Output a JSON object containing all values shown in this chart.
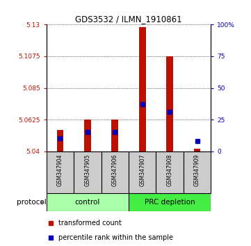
{
  "title": "GDS3532 / ILMN_1910861",
  "samples": [
    "GSM347904",
    "GSM347905",
    "GSM347906",
    "GSM347907",
    "GSM347908",
    "GSM347909"
  ],
  "red_values": [
    5.055,
    5.0625,
    5.0625,
    5.128,
    5.1075,
    5.042
  ],
  "blue_rank_pct": [
    10,
    15,
    15,
    37,
    31,
    8
  ],
  "ylim_left": [
    5.04,
    5.13
  ],
  "ylim_right": [
    0,
    100
  ],
  "yticks_left": [
    5.04,
    5.0625,
    5.085,
    5.1075,
    5.13
  ],
  "yticks_right": [
    0,
    25,
    50,
    75,
    100
  ],
  "yticklabels_left": [
    "5.04",
    "5.0625",
    "5.085",
    "5.1075",
    "5.13"
  ],
  "yticklabels_right": [
    "0",
    "25",
    "50",
    "75",
    "100%"
  ],
  "bar_bottom": 5.04,
  "bar_width": 0.25,
  "red_color": "#bb1100",
  "blue_color": "#0000bb",
  "control_label": "control",
  "prc_label": "PRC depletion",
  "control_bg": "#aaffaa",
  "prc_bg": "#44ee44",
  "protocol_label": "protocol",
  "legend_red_label": "transformed count",
  "legend_blue_label": "percentile rank within the sample",
  "sample_area_bg": "#cccccc",
  "blue_marker_size": 4,
  "n_control": 3,
  "n_prc": 3
}
